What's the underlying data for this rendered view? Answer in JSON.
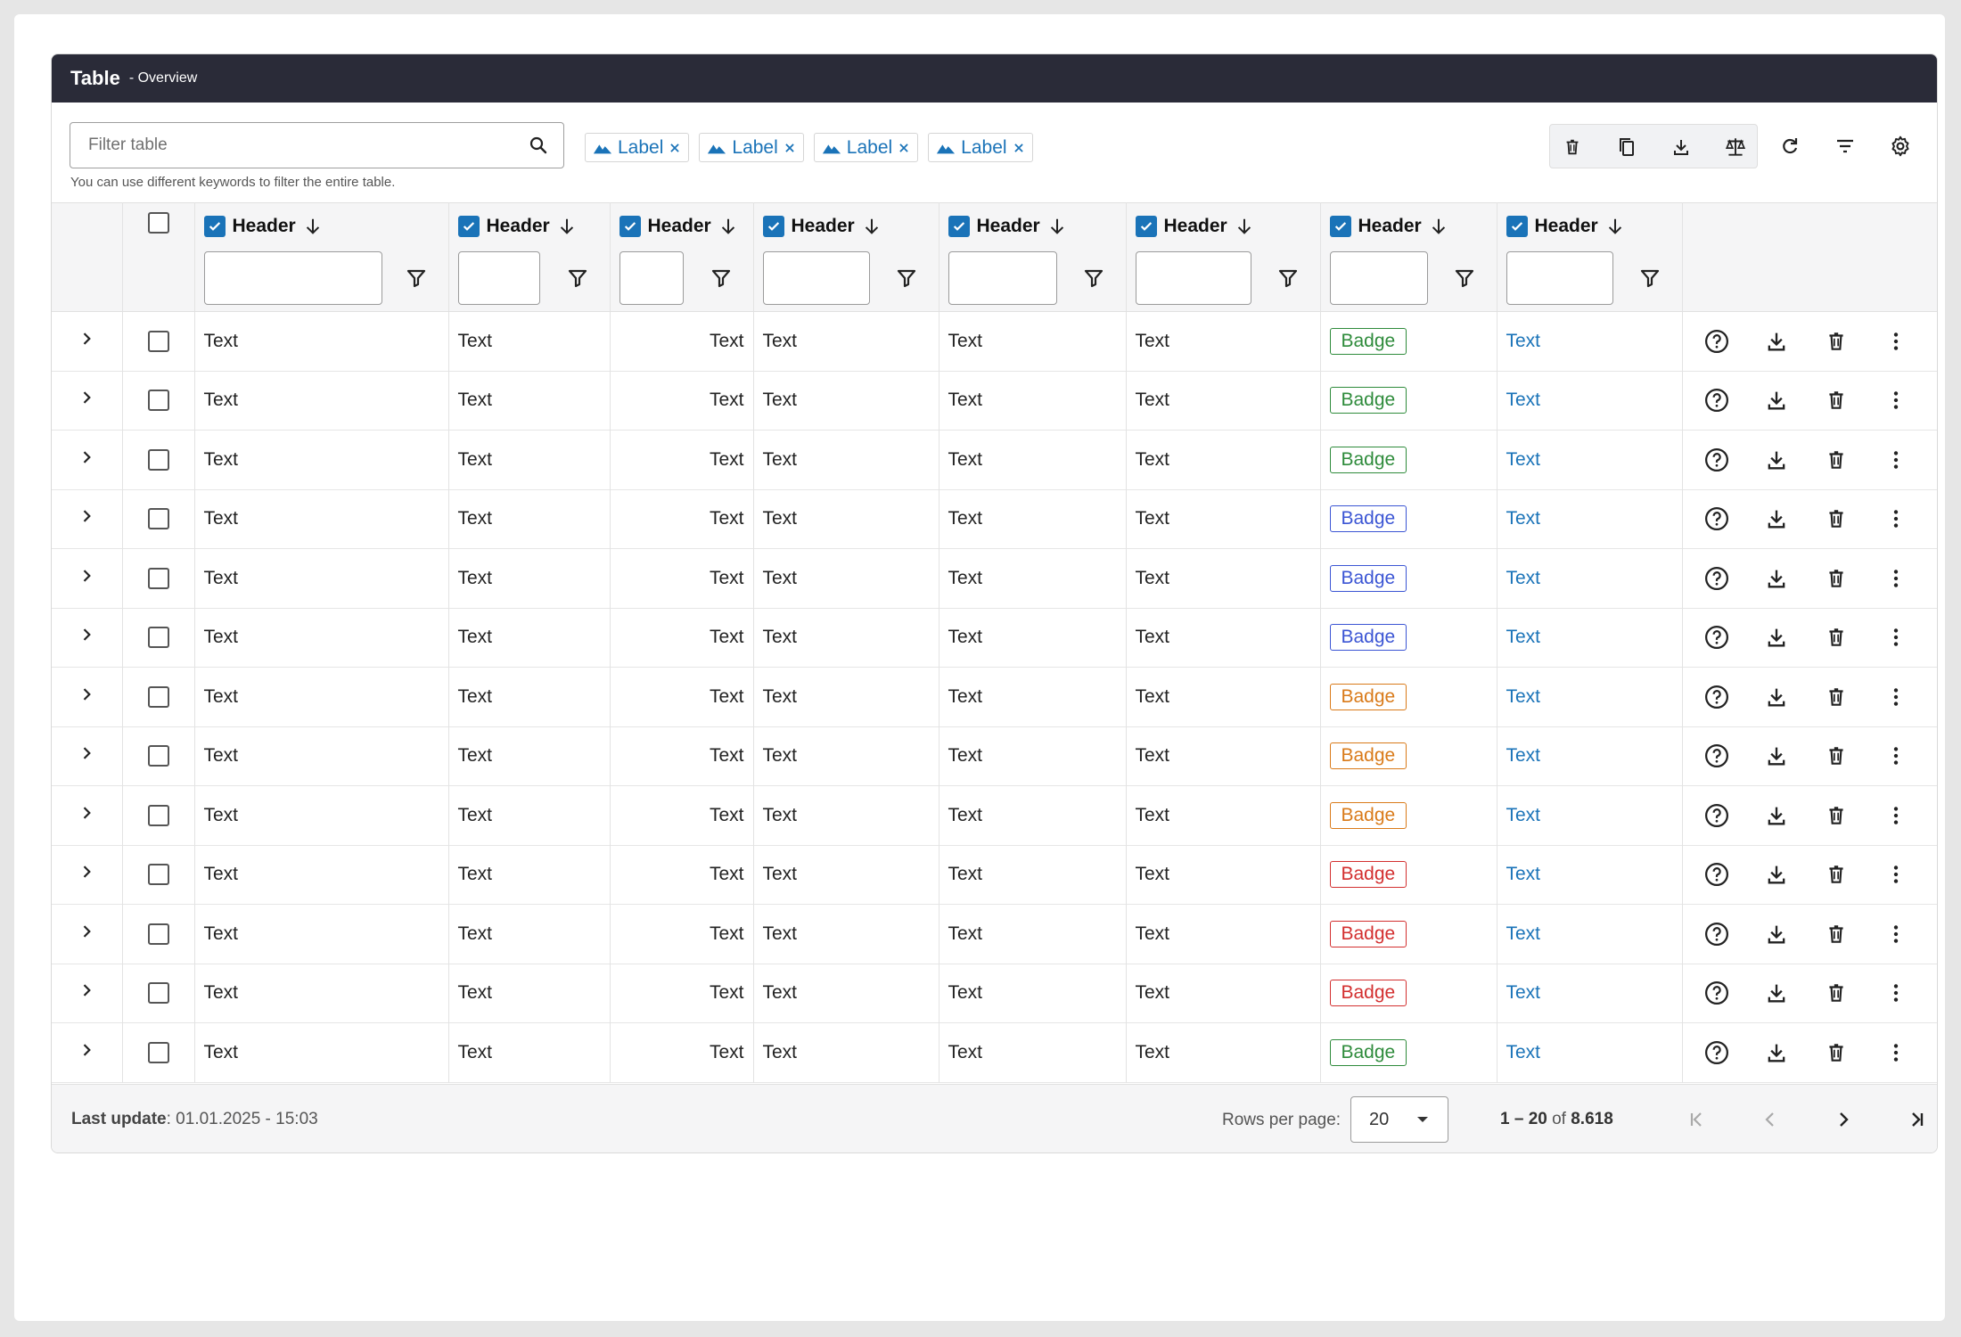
{
  "header": {
    "title": "Table",
    "subtitle": "- Overview"
  },
  "filter": {
    "placeholder": "Filter table",
    "value": "",
    "hint": "You can use different keywords to filter the entire table."
  },
  "chips": [
    {
      "label": "Label"
    },
    {
      "label": "Label"
    },
    {
      "label": "Label"
    },
    {
      "label": "Label"
    }
  ],
  "toolbar_icons": [
    "trash-icon",
    "copy-icon",
    "download-icon",
    "compare-icon",
    "refresh-icon",
    "sort-lines-icon",
    "settings-icon"
  ],
  "columns": [
    {
      "label": "Header"
    },
    {
      "label": "Header"
    },
    {
      "label": "Header"
    },
    {
      "label": "Header"
    },
    {
      "label": "Header"
    },
    {
      "label": "Header"
    },
    {
      "label": "Header"
    },
    {
      "label": "Header"
    }
  ],
  "rows": [
    {
      "c1": "Text",
      "c2": "Text",
      "c3": "Text",
      "c4": "Text",
      "c5": "Text",
      "c6": "Text",
      "badge": "Badge",
      "badge_status": "green",
      "link": "Text"
    },
    {
      "c1": "Text",
      "c2": "Text",
      "c3": "Text",
      "c4": "Text",
      "c5": "Text",
      "c6": "Text",
      "badge": "Badge",
      "badge_status": "green",
      "link": "Text"
    },
    {
      "c1": "Text",
      "c2": "Text",
      "c3": "Text",
      "c4": "Text",
      "c5": "Text",
      "c6": "Text",
      "badge": "Badge",
      "badge_status": "green",
      "link": "Text"
    },
    {
      "c1": "Text",
      "c2": "Text",
      "c3": "Text",
      "c4": "Text",
      "c5": "Text",
      "c6": "Text",
      "badge": "Badge",
      "badge_status": "blue",
      "link": "Text"
    },
    {
      "c1": "Text",
      "c2": "Text",
      "c3": "Text",
      "c4": "Text",
      "c5": "Text",
      "c6": "Text",
      "badge": "Badge",
      "badge_status": "blue",
      "link": "Text"
    },
    {
      "c1": "Text",
      "c2": "Text",
      "c3": "Text",
      "c4": "Text",
      "c5": "Text",
      "c6": "Text",
      "badge": "Badge",
      "badge_status": "blue",
      "link": "Text"
    },
    {
      "c1": "Text",
      "c2": "Text",
      "c3": "Text",
      "c4": "Text",
      "c5": "Text",
      "c6": "Text",
      "badge": "Badge",
      "badge_status": "orange",
      "link": "Text"
    },
    {
      "c1": "Text",
      "c2": "Text",
      "c3": "Text",
      "c4": "Text",
      "c5": "Text",
      "c6": "Text",
      "badge": "Badge",
      "badge_status": "orange",
      "link": "Text"
    },
    {
      "c1": "Text",
      "c2": "Text",
      "c3": "Text",
      "c4": "Text",
      "c5": "Text",
      "c6": "Text",
      "badge": "Badge",
      "badge_status": "orange",
      "link": "Text"
    },
    {
      "c1": "Text",
      "c2": "Text",
      "c3": "Text",
      "c4": "Text",
      "c5": "Text",
      "c6": "Text",
      "badge": "Badge",
      "badge_status": "red",
      "link": "Text"
    },
    {
      "c1": "Text",
      "c2": "Text",
      "c3": "Text",
      "c4": "Text",
      "c5": "Text",
      "c6": "Text",
      "badge": "Badge",
      "badge_status": "red",
      "link": "Text"
    },
    {
      "c1": "Text",
      "c2": "Text",
      "c3": "Text",
      "c4": "Text",
      "c5": "Text",
      "c6": "Text",
      "badge": "Badge",
      "badge_status": "red",
      "link": "Text"
    },
    {
      "c1": "Text",
      "c2": "Text",
      "c3": "Text",
      "c4": "Text",
      "c5": "Text",
      "c6": "Text",
      "badge": "Badge",
      "badge_status": "green",
      "link": "Text"
    }
  ],
  "row_actions": [
    "help-icon",
    "download-icon",
    "trash-icon",
    "more-vert-icon"
  ],
  "badge_colors": {
    "green": "#2e8b3b",
    "blue": "#3b55d4",
    "orange": "#d97a19",
    "red": "#d32f2f"
  },
  "accent_color": "#1a73b8",
  "footer": {
    "last_update_label": "Last update",
    "last_update_value": ": 01.01.2025 - 15:03",
    "rows_per_page_label": "Rows per page:",
    "rows_per_page_value": "20",
    "range_text": "1 – 20",
    "range_of": " of ",
    "total": "8.618"
  }
}
